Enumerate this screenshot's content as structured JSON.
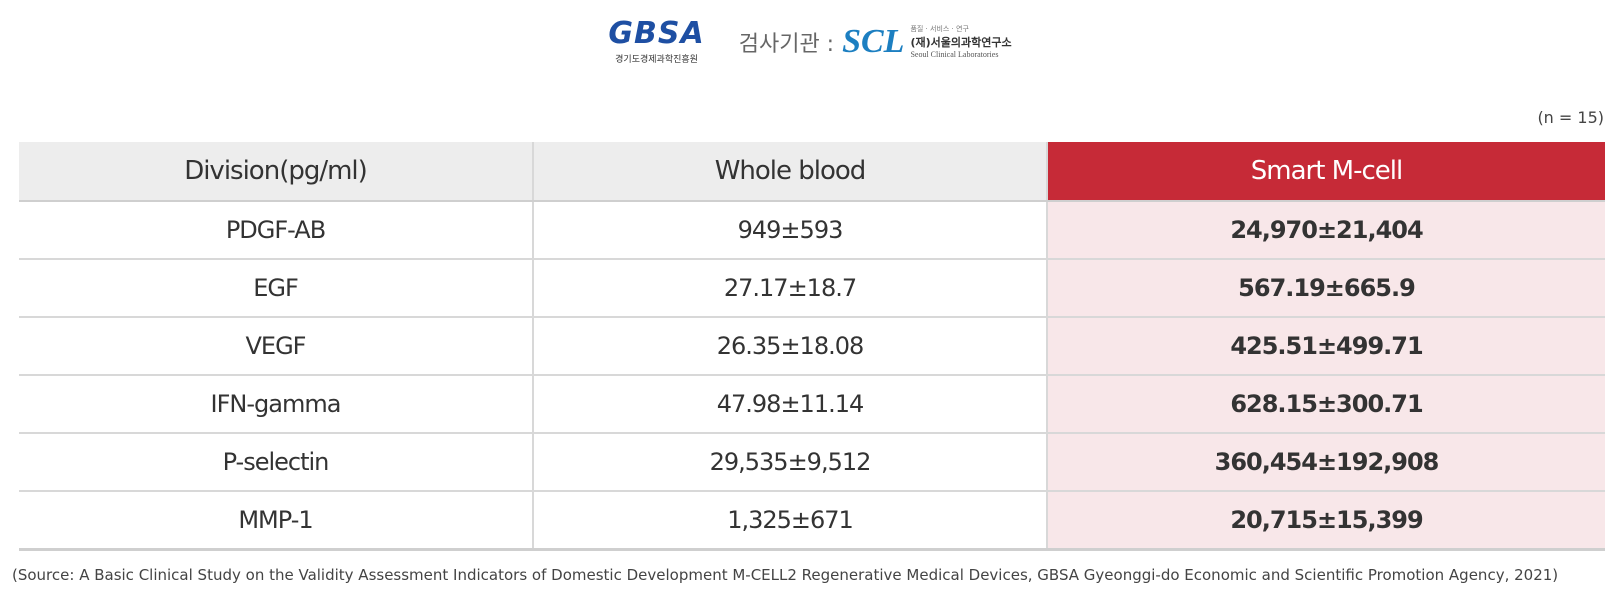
{
  "header": {
    "gbsa_logo_text": "GBSA",
    "gbsa_logo_subtitle": "경기도경제과학진흥원",
    "agency_label": "검사기관 :",
    "scl_logo_text": "SCL",
    "scl_small_text": "품질 · 서비스 · 연구",
    "scl_name": "(재)서울의과학연구소",
    "scl_english": "Seoul Clinical Laboratories"
  },
  "sample_size": "(n = 15)",
  "table": {
    "headers": [
      "Division(pg/ml)",
      "Whole blood",
      "Smart M-cell"
    ],
    "rows": [
      {
        "division": "PDGF-AB",
        "whole_blood": "949±593",
        "smart_mcell": "24,970±21,404"
      },
      {
        "division": "EGF",
        "whole_blood": "27.17±18.7",
        "smart_mcell": "567.19±665.9"
      },
      {
        "division": "VEGF",
        "whole_blood": "26.35±18.08",
        "smart_mcell": "425.51±499.71"
      },
      {
        "division": "IFN-gamma",
        "whole_blood": "47.98±11.14",
        "smart_mcell": "628.15±300.71"
      },
      {
        "division": "P-selectin",
        "whole_blood": "29,535±9,512",
        "smart_mcell": "360,454±192,908"
      },
      {
        "division": "MMP-1",
        "whole_blood": "1,325±671",
        "smart_mcell": "20,715±15,399"
      }
    ],
    "accent_color": "#c62a37",
    "highlight_column_bg": "#f8e7e9"
  },
  "source_note": "(Source: A Basic Clinical Study on the Validity Assessment Indicators of Domestic Development M-CELL2 Regenerative Medical Devices, GBSA Gyeonggi-do Economic and Scientific Promotion Agency, 2021)"
}
